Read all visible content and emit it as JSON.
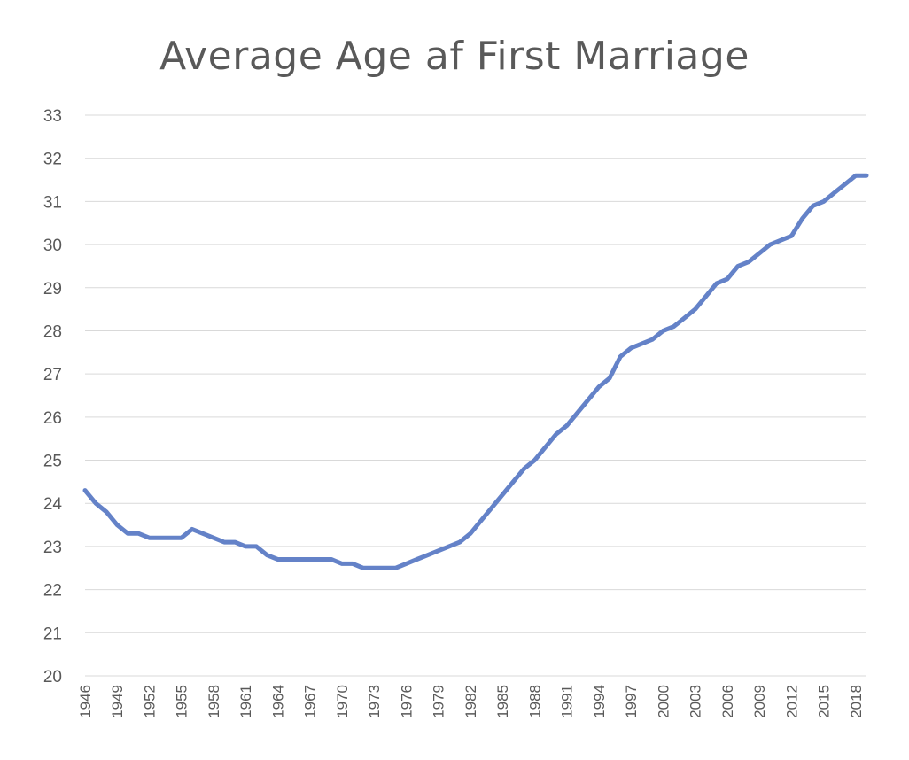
{
  "chart_data": {
    "type": "line",
    "title": "Average Age af First Marriage",
    "xlabel": "",
    "ylabel": "",
    "ylim": [
      20,
      33
    ],
    "yticks": [
      "20",
      "21",
      "22",
      "23",
      "24",
      "25",
      "26",
      "27",
      "28",
      "29",
      "30",
      "31",
      "32",
      "33"
    ],
    "xticks": [
      "1946",
      "1949",
      "1952",
      "1955",
      "1958",
      "1961",
      "1964",
      "1967",
      "1970",
      "1973",
      "1976",
      "1979",
      "1982",
      "1985",
      "1988",
      "1991",
      "1994",
      "1997",
      "2000",
      "2003",
      "2006",
      "2009",
      "2012",
      "2015",
      "2018"
    ],
    "x": [
      1946,
      1947,
      1948,
      1949,
      1950,
      1951,
      1952,
      1953,
      1954,
      1955,
      1956,
      1957,
      1958,
      1959,
      1960,
      1961,
      1962,
      1963,
      1964,
      1965,
      1966,
      1967,
      1968,
      1969,
      1970,
      1971,
      1972,
      1973,
      1974,
      1975,
      1976,
      1977,
      1978,
      1979,
      1980,
      1981,
      1982,
      1983,
      1984,
      1985,
      1986,
      1987,
      1988,
      1989,
      1990,
      1991,
      1992,
      1993,
      1994,
      1995,
      1996,
      1997,
      1998,
      1999,
      2000,
      2001,
      2002,
      2003,
      2004,
      2005,
      2006,
      2007,
      2008,
      2009,
      2010,
      2011,
      2012,
      2013,
      2014,
      2015,
      2016,
      2017,
      2018,
      2019
    ],
    "series": [
      {
        "color": "#6482c8",
        "values": [
          24.3,
          24.0,
          23.8,
          23.5,
          23.3,
          23.3,
          23.2,
          23.2,
          23.2,
          23.2,
          23.4,
          23.3,
          23.2,
          23.1,
          23.1,
          23.0,
          23.0,
          22.8,
          22.7,
          22.7,
          22.7,
          22.7,
          22.7,
          22.7,
          22.6,
          22.6,
          22.5,
          22.5,
          22.5,
          22.5,
          22.6,
          22.7,
          22.8,
          22.9,
          23.0,
          23.1,
          23.3,
          23.6,
          23.9,
          24.2,
          24.5,
          24.8,
          25.0,
          25.3,
          25.6,
          25.8,
          26.1,
          26.4,
          26.7,
          26.9,
          27.4,
          27.6,
          27.7,
          27.8,
          28.0,
          28.1,
          28.3,
          28.5,
          28.8,
          29.1,
          29.2,
          29.5,
          29.6,
          29.8,
          30.0,
          30.1,
          30.2,
          30.6,
          30.9,
          31.0,
          31.2,
          31.4,
          31.6,
          31.6
        ]
      }
    ],
    "grid": true,
    "legend": "none"
  }
}
